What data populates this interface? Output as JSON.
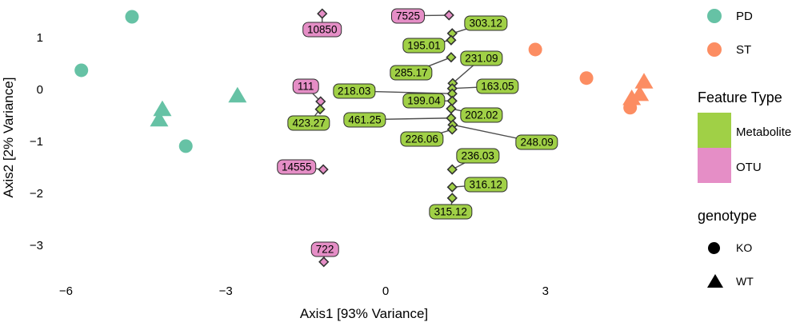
{
  "colors": {
    "PD": "#66C2A5",
    "ST": "#FC8D62",
    "Metabolite": "#A0D046",
    "OTU": "#E58EC6",
    "connector_line": "#4d4d4d",
    "marker_outline": "#333333"
  },
  "chart_data": {
    "type": "scatter",
    "subtype": "pcoa-biplot",
    "title": "",
    "xlabel": "Axis1 [93% Variance]",
    "ylabel": "Axis2 [2% Variance]",
    "x_ticks": [
      -6,
      -3,
      0,
      3
    ],
    "y_ticks": [
      1,
      0,
      -1,
      -2,
      -3
    ],
    "xlim": [
      -6.5,
      5.4
    ],
    "ylim": [
      -3.6,
      1.65
    ],
    "grid": false,
    "legend_position": "right",
    "samples": [
      {
        "x": -4.76,
        "y": 1.4,
        "group": "PD",
        "genotype": "KO"
      },
      {
        "x": -5.71,
        "y": 0.37,
        "group": "PD",
        "genotype": "KO"
      },
      {
        "x": -3.75,
        "y": -1.09,
        "group": "PD",
        "genotype": "KO"
      },
      {
        "x": -2.78,
        "y": -0.12,
        "group": "PD",
        "genotype": "WT"
      },
      {
        "x": -4.19,
        "y": -0.38,
        "group": "PD",
        "genotype": "WT"
      },
      {
        "x": -4.25,
        "y": -0.58,
        "group": "PD",
        "genotype": "WT"
      },
      {
        "x": 2.81,
        "y": 0.77,
        "group": "ST",
        "genotype": "KO"
      },
      {
        "x": 3.77,
        "y": 0.22,
        "group": "ST",
        "genotype": "KO"
      },
      {
        "x": 4.59,
        "y": -0.35,
        "group": "ST",
        "genotype": "KO"
      },
      {
        "x": 4.85,
        "y": 0.15,
        "group": "ST",
        "genotype": "WT"
      },
      {
        "x": 4.77,
        "y": -0.09,
        "group": "ST",
        "genotype": "WT"
      },
      {
        "x": 4.62,
        "y": -0.17,
        "group": "ST",
        "genotype": "WT"
      }
    ],
    "features": [
      {
        "id": "10850",
        "type": "OTU",
        "x": -1.19,
        "y": 1.46,
        "lx": -1.19,
        "ly": 1.15
      },
      {
        "id": "7525",
        "type": "OTU",
        "x": 1.19,
        "y": 1.43,
        "lx": 0.42,
        "ly": 1.42
      },
      {
        "id": "111",
        "type": "OTU",
        "x": -1.22,
        "y": -0.23,
        "lx": -1.5,
        "ly": 0.06
      },
      {
        "id": "14555",
        "type": "OTU",
        "x": -1.17,
        "y": -1.54,
        "lx": -1.67,
        "ly": -1.49
      },
      {
        "id": "722",
        "type": "OTU",
        "x": -1.16,
        "y": -3.32,
        "lx": -1.14,
        "ly": -3.08
      },
      {
        "id": "423.27",
        "type": "Metabolite",
        "x": -1.23,
        "y": -0.38,
        "lx": -1.44,
        "ly": -0.65
      },
      {
        "id": "303.12",
        "type": "Metabolite",
        "x": 1.25,
        "y": 1.08,
        "lx": 1.88,
        "ly": 1.28
      },
      {
        "id": "195.01",
        "type": "Metabolite",
        "x": 1.23,
        "y": 0.95,
        "lx": 0.72,
        "ly": 0.85
      },
      {
        "id": "285.17",
        "type": "Metabolite",
        "x": 1.23,
        "y": 0.62,
        "lx": 0.48,
        "ly": 0.32
      },
      {
        "id": "231.09",
        "type": "Metabolite",
        "x": 1.26,
        "y": 0.12,
        "lx": 1.8,
        "ly": 0.6
      },
      {
        "id": "163.05",
        "type": "Metabolite",
        "x": 1.25,
        "y": 0.02,
        "lx": 2.1,
        "ly": 0.06
      },
      {
        "id": "218.03",
        "type": "Metabolite",
        "x": 1.25,
        "y": -0.08,
        "lx": -0.59,
        "ly": -0.03
      },
      {
        "id": "199.04",
        "type": "Metabolite",
        "x": 1.25,
        "y": -0.22,
        "lx": 0.72,
        "ly": -0.22
      },
      {
        "id": "202.02",
        "type": "Metabolite",
        "x": 1.23,
        "y": -0.37,
        "lx": 1.8,
        "ly": -0.49
      },
      {
        "id": "461.25",
        "type": "Metabolite",
        "x": 1.23,
        "y": -0.55,
        "lx": -0.39,
        "ly": -0.58
      },
      {
        "id": "248.09",
        "type": "Metabolite",
        "x": 1.26,
        "y": -0.68,
        "lx": 2.84,
        "ly": -1.02
      },
      {
        "id": "226.06",
        "type": "Metabolite",
        "x": 1.25,
        "y": -0.77,
        "lx": 0.68,
        "ly": -0.95
      },
      {
        "id": "236.03",
        "type": "Metabolite",
        "x": 1.25,
        "y": -1.54,
        "lx": 1.73,
        "ly": -1.28
      },
      {
        "id": "316.12",
        "type": "Metabolite",
        "x": 1.25,
        "y": -1.88,
        "lx": 1.88,
        "ly": -1.83
      },
      {
        "id": "315.12",
        "type": "Metabolite",
        "x": 1.25,
        "y": -2.09,
        "lx": 1.22,
        "ly": -2.35
      }
    ]
  },
  "legend": {
    "groups": [
      {
        "label": "PD",
        "color": "#66C2A5"
      },
      {
        "label": "ST",
        "color": "#FC8D62"
      }
    ],
    "feature_type": {
      "title": "Feature Type",
      "items": [
        {
          "label": "Metabolite",
          "color": "#A0D046"
        },
        {
          "label": "OTU",
          "color": "#E58EC6"
        }
      ]
    },
    "genotype": {
      "title": "genotype",
      "items": [
        {
          "label": "KO",
          "shape": "circle"
        },
        {
          "label": "WT",
          "shape": "triangle"
        }
      ]
    }
  }
}
